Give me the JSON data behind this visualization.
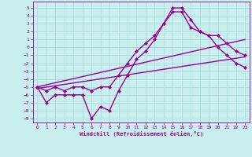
{
  "xlabel": "Windchill (Refroidissement éolien,°C)",
  "background_color": "#c8eeee",
  "grid_color": "#aadddd",
  "line_color": "#990099",
  "x_ticks": [
    0,
    1,
    2,
    3,
    4,
    5,
    6,
    7,
    8,
    9,
    10,
    11,
    12,
    13,
    14,
    15,
    16,
    17,
    18,
    19,
    20,
    21,
    22,
    23
  ],
  "y_ticks": [
    5,
    4,
    3,
    2,
    1,
    0,
    -1,
    -2,
    -3,
    -4,
    -5,
    -6,
    -7,
    -8,
    -9
  ],
  "ylim": [
    -9.5,
    5.8
  ],
  "xlim": [
    -0.5,
    23.5
  ],
  "lines": [
    {
      "x": [
        0,
        1,
        2,
        3,
        4,
        5,
        6,
        7,
        8,
        9,
        10,
        11,
        12,
        13,
        14,
        15,
        16,
        17,
        18,
        19,
        20,
        21,
        22,
        23
      ],
      "y": [
        -5,
        -7,
        -6,
        -6,
        -6,
        -6,
        -9,
        -7.5,
        -8,
        -5.5,
        -3.5,
        -1.5,
        -0.5,
        1,
        3,
        5,
        5,
        3.5,
        2,
        1.5,
        0,
        -1,
        -2,
        -2.5
      ],
      "marker": "D",
      "markersize": 2,
      "linewidth": 1.0
    },
    {
      "x": [
        0,
        1,
        2,
        3,
        4,
        5,
        6,
        7,
        8,
        9,
        10,
        11,
        12,
        13,
        14,
        15,
        16,
        17,
        18,
        19,
        20,
        21,
        22,
        23
      ],
      "y": [
        -5,
        -5.5,
        -5,
        -5.5,
        -5,
        -5,
        -5.5,
        -5,
        -5,
        -3.5,
        -2,
        -0.5,
        0.5,
        1.5,
        3,
        4.5,
        4.5,
        2.5,
        2,
        1.5,
        1.5,
        0.5,
        -0.5,
        -1
      ],
      "marker": "D",
      "markersize": 2,
      "linewidth": 1.0
    },
    {
      "x": [
        0,
        23
      ],
      "y": [
        -5.0,
        1.0
      ],
      "marker": null,
      "markersize": 0,
      "linewidth": 1.0
    },
    {
      "x": [
        0,
        23
      ],
      "y": [
        -5.2,
        -1.2
      ],
      "marker": null,
      "markersize": 0,
      "linewidth": 1.0
    }
  ]
}
